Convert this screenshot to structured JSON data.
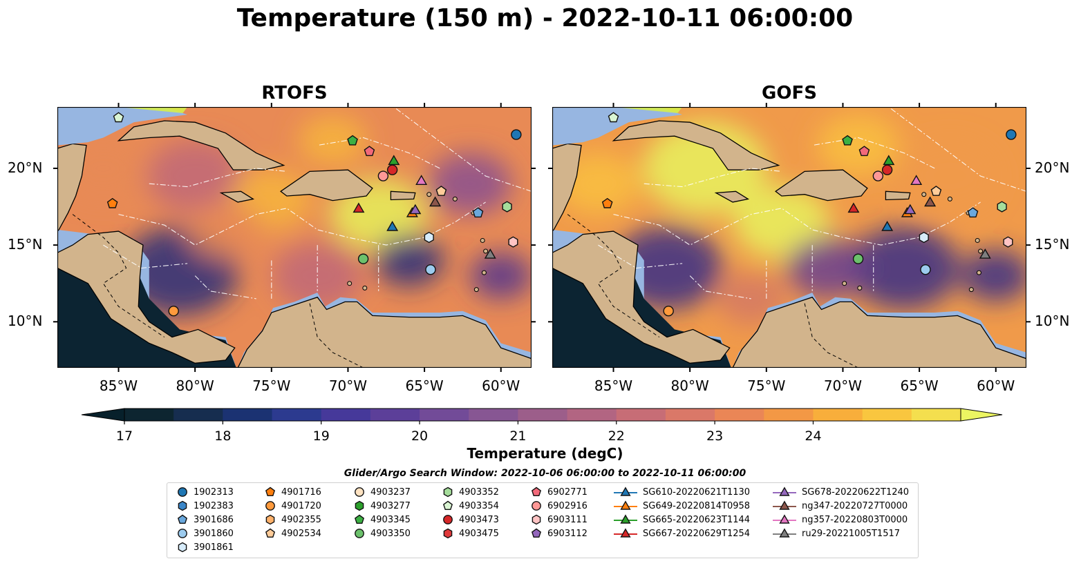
{
  "title": "Temperature (150 m) - 2022-10-11 06:00:00",
  "panels": [
    {
      "title": "RTOFS",
      "palette": [
        "#2b2f7a",
        "#56358c",
        "#8a4f8f",
        "#c06878",
        "#e88a55",
        "#f7b53c",
        "#e6f05a"
      ]
    },
    {
      "title": "GOFS",
      "palette": [
        "#3a2f86",
        "#6a3f8f",
        "#a65a85",
        "#d47865",
        "#f09a4a",
        "#f9c040",
        "#e8f25e"
      ]
    }
  ],
  "map": {
    "lon_ticks": [
      "85°W",
      "80°W",
      "75°W",
      "70°W",
      "65°W",
      "60°W"
    ],
    "lat_ticks": [
      "20°N",
      "15°N",
      "10°N"
    ],
    "land_color": "#d2b48c",
    "water_color": "#97b6e1",
    "deep_color": "#0c2432"
  },
  "colorbar": {
    "label": "Temperature (degC)",
    "ticks": [
      "17",
      "18",
      "19",
      "20",
      "21",
      "22",
      "23",
      "24"
    ],
    "colors": [
      "#0d2530",
      "#162d4f",
      "#1b3272",
      "#2c3a8f",
      "#46399a",
      "#5c3f99",
      "#724b98",
      "#875693",
      "#9c5e8a",
      "#b26582",
      "#c76d76",
      "#da7868",
      "#ea8656",
      "#f39845",
      "#f8ae3b",
      "#f9c63f",
      "#f4df4e"
    ],
    "extend_min_color": "#07202b",
    "extend_max_color": "#ecf562"
  },
  "legend": {
    "title": "Glider/Argo Search Window: 2022-10-06 06:00:00 to 2022-10-11 06:00:00",
    "columns": [
      [
        {
          "label": "1902313",
          "marker": "circle",
          "color": "#1f77b4"
        },
        {
          "label": "1902383",
          "marker": "hexagon",
          "color": "#3a86c8"
        },
        {
          "label": "3901686",
          "marker": "pentagon",
          "color": "#6aa8dd"
        },
        {
          "label": "3901860",
          "marker": "circle",
          "color": "#9ccbee"
        },
        {
          "label": "3901861",
          "marker": "hexagon",
          "color": "#d7ecfb"
        }
      ],
      [
        {
          "label": "4901716",
          "marker": "pentagon",
          "color": "#ff7f0e"
        },
        {
          "label": "4901720",
          "marker": "circle",
          "color": "#ff9a3c"
        },
        {
          "label": "4902355",
          "marker": "hexagon",
          "color": "#ffb26b"
        },
        {
          "label": "4902534",
          "marker": "pentagon",
          "color": "#ffcc99"
        }
      ],
      [
        {
          "label": "4903237",
          "marker": "circle",
          "color": "#ffe3c2"
        },
        {
          "label": "4903277",
          "marker": "hexagon",
          "color": "#2ca02c"
        },
        {
          "label": "4903345",
          "marker": "pentagon",
          "color": "#3cb043"
        },
        {
          "label": "4903350",
          "marker": "circle",
          "color": "#6cc16c"
        }
      ],
      [
        {
          "label": "4903352",
          "marker": "hexagon",
          "color": "#a5dd9b"
        },
        {
          "label": "4903354",
          "marker": "pentagon",
          "color": "#daf5d3"
        },
        {
          "label": "4903473",
          "marker": "circle",
          "color": "#d62728"
        },
        {
          "label": "4903475",
          "marker": "hexagon",
          "color": "#e0393b"
        }
      ],
      [
        {
          "label": "6902771",
          "marker": "pentagon",
          "color": "#f2697a"
        },
        {
          "label": "6902916",
          "marker": "circle",
          "color": "#ff9896"
        },
        {
          "label": "6903111",
          "marker": "hexagon",
          "color": "#ffc4c4"
        },
        {
          "label": "6903112",
          "marker": "pentagon",
          "color": "#9467bd"
        }
      ],
      [
        {
          "label": "SG610-20220621T1130",
          "marker": "triangle-line",
          "color": "#1f77b4"
        },
        {
          "label": "SG649-20220814T0958",
          "marker": "triangle-line",
          "color": "#ff7f0e"
        },
        {
          "label": "SG665-20220623T1144",
          "marker": "triangle-line",
          "color": "#2ca02c"
        },
        {
          "label": "SG667-20220629T1254",
          "marker": "triangle-line",
          "color": "#d62728"
        }
      ],
      [
        {
          "label": "SG678-20220622T1240",
          "marker": "triangle-line",
          "color": "#9467bd"
        },
        {
          "label": "ng347-20220727T0000",
          "marker": "triangle-line",
          "color": "#8c564b"
        },
        {
          "label": "ng357-20220803T0000",
          "marker": "triangle-line",
          "color": "#e377c2"
        },
        {
          "label": "ru29-20221005T1517",
          "marker": "triangle-line",
          "color": "#7f7f7f"
        }
      ]
    ]
  },
  "observations": [
    {
      "label": "1902313",
      "marker": "circle",
      "color": "#1f77b4",
      "lon": -59,
      "lat": 22.2
    },
    {
      "label": "3901860",
      "marker": "circle",
      "color": "#9ccbee",
      "lon": -64.6,
      "lat": 13.4
    },
    {
      "label": "3901861",
      "marker": "hexagon",
      "color": "#d7ecfb",
      "lon": -64.7,
      "lat": 15.5
    },
    {
      "label": "3901686",
      "marker": "pentagon",
      "color": "#6aa8dd",
      "lon": -61.5,
      "lat": 17.1
    },
    {
      "label": "4901716",
      "marker": "pentagon",
      "color": "#ff7f0e",
      "lon": -85.4,
      "lat": 17.7
    },
    {
      "label": "4901720",
      "marker": "circle",
      "color": "#ff9a3c",
      "lon": -81.4,
      "lat": 10.7
    },
    {
      "label": "4902534",
      "marker": "pentagon",
      "color": "#ffcc99",
      "lon": -63.9,
      "lat": 18.5
    },
    {
      "label": "4903345",
      "marker": "pentagon",
      "color": "#3cb043",
      "lon": -69.7,
      "lat": 21.8
    },
    {
      "label": "4903350",
      "marker": "circle",
      "color": "#6cc16c",
      "lon": -69,
      "lat": 14.1
    },
    {
      "label": "4903352",
      "marker": "hexagon",
      "color": "#a5dd9b",
      "lon": -59.6,
      "lat": 17.5
    },
    {
      "label": "4903354",
      "marker": "pentagon",
      "color": "#daf5d3",
      "lon": -85,
      "lat": 23.3
    },
    {
      "label": "4903473",
      "marker": "circle",
      "color": "#d62728",
      "lon": -67.1,
      "lat": 19.9
    },
    {
      "label": "6902771",
      "marker": "pentagon",
      "color": "#f2697a",
      "lon": -68.6,
      "lat": 21.1
    },
    {
      "label": "6902916",
      "marker": "circle",
      "color": "#ff9896",
      "lon": -67.7,
      "lat": 19.5
    },
    {
      "label": "6903111",
      "marker": "hexagon",
      "color": "#ffc4c4",
      "lon": -59.2,
      "lat": 15.2
    },
    {
      "label": "SG610-20220621T1130",
      "marker": "triangle",
      "color": "#1f77b4",
      "lon": -67.1,
      "lat": 16.2
    },
    {
      "label": "SG649-20220814T0958",
      "marker": "triangle",
      "color": "#ff7f0e",
      "lon": -65.8,
      "lat": 17.1
    },
    {
      "label": "SG665-20220623T1144",
      "marker": "triangle",
      "color": "#2ca02c",
      "lon": -67,
      "lat": 20.5
    },
    {
      "label": "SG667-20220629T1254",
      "marker": "triangle",
      "color": "#d62728",
      "lon": -69.3,
      "lat": 17.4
    },
    {
      "label": "SG678-20220622T1240",
      "marker": "triangle",
      "color": "#9467bd",
      "lon": -65.6,
      "lat": 17.3
    },
    {
      "label": "ng347-20220727T0000",
      "marker": "triangle",
      "color": "#8c564b",
      "lon": -64.3,
      "lat": 17.8
    },
    {
      "label": "ng357-20220803T0000",
      "marker": "triangle",
      "color": "#e377c2",
      "lon": -65.2,
      "lat": 19.2
    },
    {
      "label": "ru29-20221005T1517",
      "marker": "triangle",
      "color": "#7f7f7f",
      "lon": -60.7,
      "lat": 14.4
    }
  ]
}
